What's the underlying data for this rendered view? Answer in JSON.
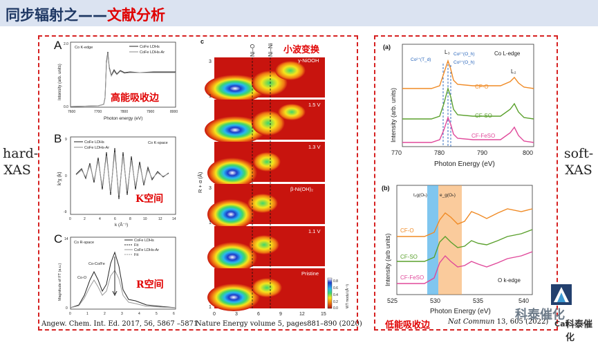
{
  "header": {
    "title_part1": "同步辐射之——",
    "title_part2": "文献分析"
  },
  "side_labels": {
    "left_line1": "hard-",
    "left_line2": "XAS",
    "right_line1": "soft-",
    "right_line2": "XAS"
  },
  "panel_a": {
    "letter": "A",
    "inner_label": "Co K-edge",
    "legend": [
      "CoFe LDHs",
      "CoFe LDHs-Ar"
    ],
    "ylabel": "Intensity (arb. units)",
    "xlabel": "Photon energy (eV)",
    "x_ticks": [
      "7600",
      "7700",
      "7800",
      "7900",
      "8000"
    ],
    "y_ticks": [
      "0.0",
      "0.4",
      "0.8",
      "1.2",
      "1.6",
      "2.0"
    ],
    "annotation": "高能吸收边"
  },
  "panel_b": {
    "letter": "B",
    "inner_label": "Co K-space",
    "legend": [
      "CoFe LDHs",
      "CoFe LDHs-Ar"
    ],
    "ylabel": "k³χ (k)",
    "xlabel": "k (Å⁻¹)",
    "x_ticks": [
      "0",
      "2",
      "4",
      "6",
      "8",
      "10",
      "12",
      "14"
    ],
    "y_ticks": [
      "-9",
      "-6",
      "-3",
      "0",
      "3",
      "6",
      "9"
    ],
    "annotation": "K空间"
  },
  "panel_c": {
    "letter": "C",
    "inner_label": "Co R-space",
    "legend": [
      "CoFe LDHs",
      "Fit",
      "CoFe LDHs-Ar",
      "Fit"
    ],
    "ylabel": "Magnitude of FT (a.u.)",
    "x_ticks": [
      "0",
      "1",
      "2",
      "3",
      "4",
      "5",
      "6"
    ],
    "y_ticks": [
      "0",
      "2",
      "4",
      "6",
      "8",
      "10",
      "12",
      "14"
    ],
    "peak_labels": [
      "Co-O",
      "Co-Co/Fe"
    ],
    "annotation": "R空间"
  },
  "panel_wt": {
    "letter": "c",
    "col_labels": [
      "Ni–O",
      "Ni–Ni"
    ],
    "row_labels": [
      "γ-NiOOH",
      "1.5 V",
      "1.3 V",
      "β-Ni(OH)₂",
      "1.1 V",
      "Pristine"
    ],
    "ylabel": "R + α (Å)",
    "xlabel": "k (Å⁻¹)",
    "x_ticks": [
      "0",
      "3",
      "6",
      "9",
      "12",
      "15"
    ],
    "y_ticks": [
      "1",
      "2",
      "3"
    ],
    "colorbar_label": "WT modul (Å⁻³)",
    "colorbar_ticks": [
      "0.8",
      "0.6",
      "0.4",
      "0.2",
      "0.0"
    ],
    "annotation": "小波变换"
  },
  "panel_ledge": {
    "letter": "(a)",
    "title": "Co L-edge",
    "ylabel": "Intensity (arb. units)",
    "xlabel": "Photon Energy (eV)",
    "x_ticks": [
      "770",
      "780",
      "790",
      "800"
    ],
    "edge_labels": [
      "L₃",
      "L₂"
    ],
    "species": [
      "Co²⁺(T_d)",
      "Co²⁺(O_h)",
      "Co³⁺(O_h)"
    ],
    "series_names": [
      "CF-O",
      "CF-SO",
      "CF-FeSO"
    ],
    "series_colors": [
      "#f08a24",
      "#5aa02c",
      "#e0489a"
    ]
  },
  "panel_kedge": {
    "letter": "(b)",
    "title": "O k-edge",
    "ylabel": "Intensity (arb units)",
    "xlabel": "Photon Energy (eV)",
    "x_ticks": [
      "525",
      "530",
      "535",
      "540"
    ],
    "band_labels": [
      "t₂g(Oₕ)",
      "e_g(Oₕ)"
    ],
    "series_names": [
      "CF-O",
      "CF-SO",
      "CF-FeSO"
    ],
    "annotation": "低能吸收边"
  },
  "citations": {
    "left": "Angew. Chem. Int. Ed. 2017, 56, 5867 –5871",
    "middle": "Nature Energy volume 5, pages881–890 (2020)",
    "right_journal": "Nat Commun",
    "right_rest": "13, 605 (2022)"
  },
  "watermark": {
    "text": "科泰催化",
    "logo_text": "Cat",
    "logo_sub": "科泰催化"
  }
}
